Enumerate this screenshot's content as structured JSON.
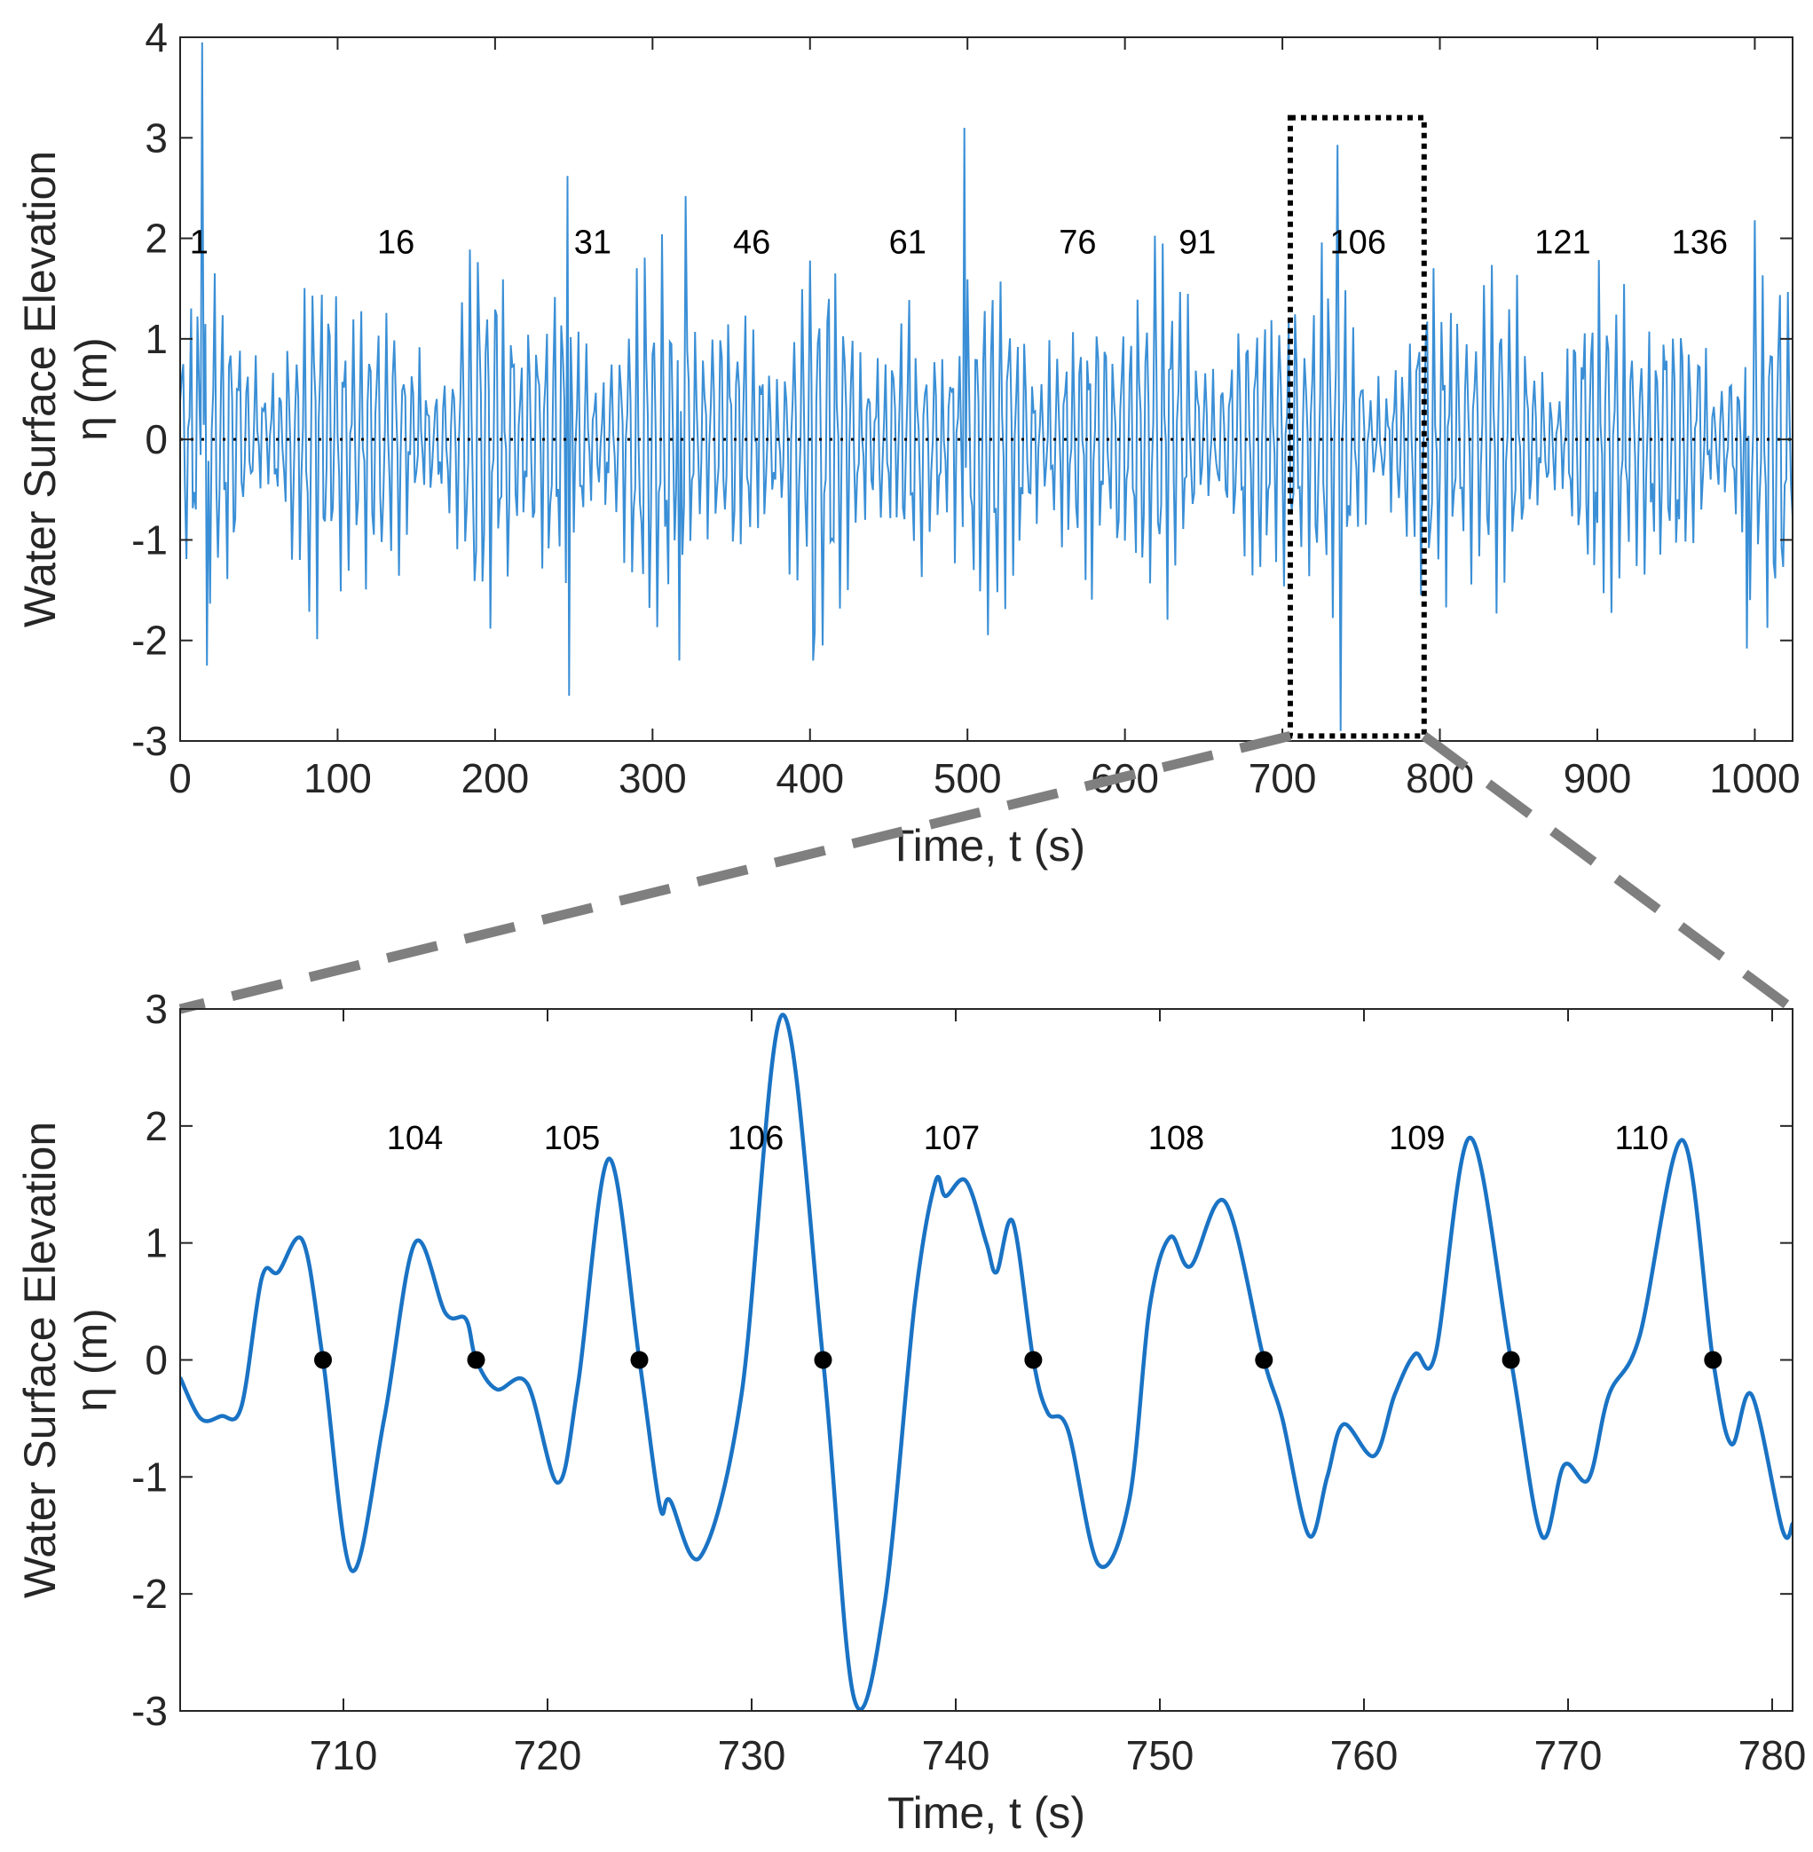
{
  "colors": {
    "signal_top": "#3a8fd6",
    "signal_bottom": "#1a73c4",
    "zero_line": "#000000",
    "zoom_box": "#000000",
    "connector": "#7f7f7f",
    "axes": "#262626"
  },
  "chart_data": [
    {
      "id": "top",
      "type": "line",
      "title": "",
      "xlabel": "Time, t (s)",
      "ylabel_line1": "Water Surface Elevation",
      "ylabel_line2": "η (m)",
      "xlim": [
        0,
        1024
      ],
      "ylim": [
        -3,
        4
      ],
      "xticks": [
        0,
        100,
        200,
        300,
        400,
        500,
        600,
        700,
        800,
        900,
        1000
      ],
      "yticks": [
        -3,
        -2,
        -1,
        0,
        1,
        2,
        3,
        4
      ],
      "zero_line_dotted": true,
      "zoom_box": {
        "x": [
          705,
          790
        ],
        "y": [
          -2.95,
          3.2
        ]
      },
      "wave_labels": [
        {
          "label": "1",
          "x": 12,
          "y": 1.85
        },
        {
          "label": "16",
          "x": 137,
          "y": 1.85
        },
        {
          "label": "31",
          "x": 262,
          "y": 1.85
        },
        {
          "label": "46",
          "x": 363,
          "y": 1.85
        },
        {
          "label": "61",
          "x": 462,
          "y": 1.85
        },
        {
          "label": "76",
          "x": 570,
          "y": 1.85
        },
        {
          "label": "91",
          "x": 646,
          "y": 1.85
        },
        {
          "label": "106",
          "x": 748,
          "y": 1.85
        },
        {
          "label": "121",
          "x": 878,
          "y": 1.85
        },
        {
          "label": "136",
          "x": 965,
          "y": 1.85
        }
      ],
      "peaks": [
        {
          "x": 14,
          "y": 3.95
        },
        {
          "x": 246,
          "y": 2.62
        },
        {
          "x": 321,
          "y": 2.42
        },
        {
          "x": 498,
          "y": 3.1
        },
        {
          "x": 735,
          "y": 2.93
        },
        {
          "x": 1000,
          "y": 2.18
        }
      ],
      "troughs": [
        {
          "x": 17,
          "y": -2.25
        },
        {
          "x": 247,
          "y": -2.55
        },
        {
          "x": 317,
          "y": -2.2
        },
        {
          "x": 402,
          "y": -2.2
        },
        {
          "x": 737,
          "y": -2.9
        },
        {
          "x": 995,
          "y": -2.08
        }
      ]
    },
    {
      "id": "bottom",
      "type": "line",
      "title": "",
      "xlabel": "Time, t (s)",
      "ylabel_line1": "Water Surface Elevation",
      "ylabel_line2": "η (m)",
      "xlim": [
        702,
        781
      ],
      "ylim": [
        -3,
        3
      ],
      "xticks": [
        710,
        720,
        730,
        740,
        750,
        760,
        770,
        780
      ],
      "yticks": [
        -3,
        -2,
        -1,
        0,
        1,
        2,
        3
      ],
      "series": [
        {
          "x": [
            702,
            703,
            704,
            705,
            706,
            706.8,
            708,
            709,
            710.4,
            712,
            713.5,
            715,
            716,
            716.5,
            717.5,
            719,
            720.5,
            721.5,
            723,
            724.5,
            725.5,
            726,
            727.5,
            729.5,
            731.5,
            733.5,
            735,
            736.5,
            738,
            739,
            739.5,
            740.5,
            741.5,
            742,
            742.8,
            743.8,
            744.5,
            745.5,
            747,
            748.5,
            749.5,
            750.5,
            751.5,
            753.2,
            755.1,
            756,
            757.3,
            758.2,
            759,
            760.5,
            761.5,
            762.5,
            763.5,
            765.2,
            767.2,
            768.7,
            769.8,
            771,
            772,
            773.5,
            775.6,
            777.1,
            778,
            779,
            780.5,
            781
          ],
          "y": [
            -0.15,
            -0.5,
            -0.48,
            -0.4,
            0.7,
            0.75,
            1.02,
            0.0,
            -1.8,
            -0.5,
            1.0,
            0.4,
            0.35,
            0.0,
            -0.25,
            -0.2,
            -1.05,
            -0.2,
            1.72,
            0.0,
            -1.25,
            -1.2,
            -1.68,
            -0.3,
            2.95,
            0.0,
            -2.88,
            -2.1,
            0.5,
            1.52,
            1.4,
            1.53,
            1.0,
            0.75,
            1.18,
            0.0,
            -0.45,
            -0.6,
            -1.75,
            -1.2,
            0.45,
            1.05,
            0.8,
            1.35,
            0.0,
            -0.5,
            -1.5,
            -1.0,
            -0.55,
            -0.82,
            -0.3,
            0.05,
            0.05,
            1.9,
            0.0,
            -1.5,
            -0.9,
            -1.02,
            -0.3,
            0.2,
            1.88,
            0.0,
            -0.72,
            -0.3,
            -1.45,
            -1.4
          ]
        }
      ],
      "zero_crossings": [
        709.0,
        716.5,
        724.5,
        733.5,
        743.8,
        755.1,
        767.2,
        777.1
      ],
      "wave_labels": [
        {
          "label": "104",
          "x": 713.5,
          "y": 1.8
        },
        {
          "label": "105",
          "x": 721.2,
          "y": 1.8
        },
        {
          "label": "106",
          "x": 730.2,
          "y": 1.8
        },
        {
          "label": "107",
          "x": 739.8,
          "y": 1.8
        },
        {
          "label": "108",
          "x": 750.8,
          "y": 1.8
        },
        {
          "label": "109",
          "x": 762.6,
          "y": 1.8
        },
        {
          "label": "110",
          "x": 773.6,
          "y": 1.8
        }
      ]
    }
  ]
}
